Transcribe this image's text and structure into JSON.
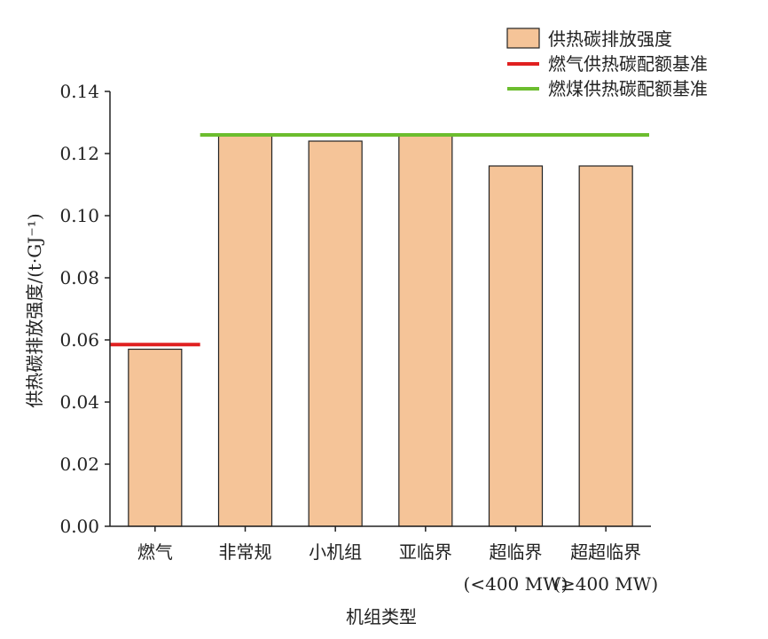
{
  "chart_data": {
    "type": "bar",
    "categories": [
      "燃气",
      "非常规",
      "小机组",
      "亚临界",
      "超临界",
      "超超临界"
    ],
    "category_sublabels": [
      "",
      "",
      "",
      "",
      "(<400 MW)",
      "(≥400 MW)"
    ],
    "series": [
      {
        "name": "供热碳排放强度",
        "values": [
          0.057,
          0.126,
          0.124,
          0.126,
          0.116,
          0.116
        ],
        "color": "#f5c498"
      }
    ],
    "reference_lines": [
      {
        "name": "燃气供热碳配额基准",
        "value": 0.0585,
        "from_category": 0,
        "to_category": 0,
        "color": "#e02020"
      },
      {
        "name": "燃煤供热碳配额基准",
        "value": 0.126,
        "from_category": 1,
        "to_category": 5,
        "color": "#6cbd2e"
      }
    ],
    "xlabel": "机组类型",
    "ylabel": "供热碳排放强度/(t·GJ⁻¹)",
    "ylim": [
      0,
      0.14
    ],
    "yticks": [
      "0.00",
      "0.02",
      "0.04",
      "0.06",
      "0.08",
      "0.10",
      "0.12",
      "0.14"
    ],
    "grid": false,
    "legend_position": "top-right"
  }
}
